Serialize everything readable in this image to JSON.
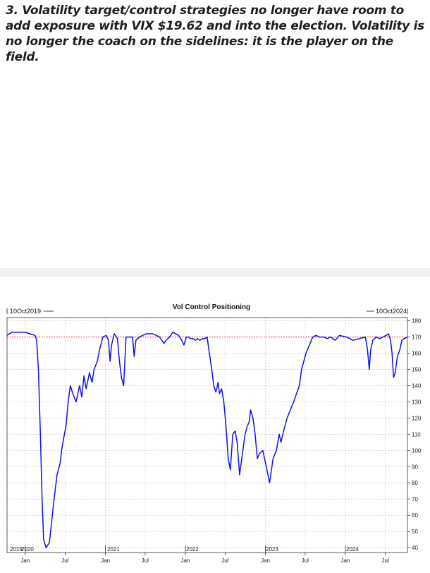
{
  "heading": "3. Volatility target/control strategies no longer have room to add exposure with VIX $19.62 and into the election. Volatility is no longer the coach on the sidelines: it is the player on the field.",
  "colors": {
    "series": "#1010f0",
    "reference": "#e02020",
    "grid": "#c8c8c8"
  },
  "chart_data": {
    "type": "line",
    "title": "Vol Control Positioning",
    "range_start_label": "10Oct2019",
    "range_end_label": "10Oct2024",
    "xlabel": "",
    "ylabel": "",
    "ylim": [
      37,
      182
    ],
    "yticks": [
      40,
      50,
      60,
      70,
      80,
      90,
      100,
      110,
      120,
      130,
      140,
      150,
      160,
      170,
      180
    ],
    "y_axis_side": "right",
    "grid": true,
    "reference_line": {
      "value": 170,
      "style": "dotted"
    },
    "x_month_labels": [
      "Jan",
      "Jul",
      "Jan",
      "Jul",
      "Jan",
      "Jul",
      "Jan",
      "Jul",
      "Jan",
      "Jul"
    ],
    "x_year_labels": [
      "2019",
      "2020",
      "2021",
      "2022",
      "2023",
      "2024"
    ],
    "series": [
      {
        "x": [
          "2019-10-10",
          "2019-11-01",
          "2019-12-01",
          "2020-01-01",
          "2020-01-20",
          "2020-02-15",
          "2020-02-22",
          "2020-03-01",
          "2020-03-10",
          "2020-03-18",
          "2020-03-25",
          "2020-04-05",
          "2020-04-20",
          "2020-05-10",
          "2020-05-25",
          "2020-06-08",
          "2020-06-15",
          "2020-06-25",
          "2020-07-05",
          "2020-07-15",
          "2020-07-25",
          "2020-08-05",
          "2020-08-20",
          "2020-09-05",
          "2020-09-15",
          "2020-09-25",
          "2020-10-05",
          "2020-10-20",
          "2020-11-01",
          "2020-11-10",
          "2020-11-25",
          "2020-12-05",
          "2020-12-20",
          "2021-01-05",
          "2021-01-15",
          "2021-01-22",
          "2021-01-29",
          "2021-02-10",
          "2021-02-25",
          "2021-03-05",
          "2021-03-15",
          "2021-03-25",
          "2021-04-05",
          "2021-05-05",
          "2021-05-12",
          "2021-05-20",
          "2021-06-05",
          "2021-07-05",
          "2021-08-05",
          "2021-09-05",
          "2021-09-15",
          "2021-09-25",
          "2021-10-05",
          "2021-10-20",
          "2021-11-05",
          "2021-12-01",
          "2021-12-15",
          "2021-12-25",
          "2022-01-05",
          "2022-01-15",
          "2022-01-25",
          "2022-02-05",
          "2022-02-15",
          "2022-02-25",
          "2022-03-08",
          "2022-03-20",
          "2022-03-30",
          "2022-04-10",
          "2022-04-20",
          "2022-05-01",
          "2022-05-10",
          "2022-05-20",
          "2022-05-30",
          "2022-06-05",
          "2022-06-15",
          "2022-06-25",
          "2022-07-05",
          "2022-07-15",
          "2022-07-25",
          "2022-08-05",
          "2022-08-16",
          "2022-08-25",
          "2022-09-05",
          "2022-09-15",
          "2022-09-25",
          "2022-09-30",
          "2022-10-10",
          "2022-10-20",
          "2022-10-25",
          "2022-11-05",
          "2022-11-15",
          "2022-11-25",
          "2022-12-05",
          "2022-12-20",
          "2023-01-05",
          "2023-01-20",
          "2023-02-05",
          "2023-02-20",
          "2023-03-05",
          "2023-03-13",
          "2023-03-25",
          "2023-04-10",
          "2023-05-10",
          "2023-06-05",
          "2023-06-15",
          "2023-07-05",
          "2023-08-05",
          "2023-08-20",
          "2023-09-05",
          "2023-09-25",
          "2023-10-10",
          "2023-10-25",
          "2023-11-05",
          "2023-11-15",
          "2023-12-05",
          "2024-01-05",
          "2024-02-05",
          "2024-03-05",
          "2024-04-01",
          "2024-04-10",
          "2024-04-19",
          "2024-04-25",
          "2024-05-05",
          "2024-05-20",
          "2024-06-05",
          "2024-06-20",
          "2024-07-05",
          "2024-07-15",
          "2024-07-25",
          "2024-08-01",
          "2024-08-05",
          "2024-08-08",
          "2024-08-15",
          "2024-08-25",
          "2024-09-05",
          "2024-09-15",
          "2024-09-25",
          "2024-10-10"
        ],
        "y": [
          171,
          173,
          173,
          173,
          172,
          171,
          168,
          150,
          110,
          70,
          45,
          40,
          43,
          68,
          85,
          92,
          100,
          108,
          115,
          130,
          140,
          135,
          130,
          140,
          133,
          146,
          138,
          148,
          142,
          150,
          155,
          162,
          170,
          171,
          168,
          155,
          165,
          172,
          169,
          156,
          145,
          140,
          170,
          170,
          158,
          168,
          170,
          172,
          172,
          170,
          168,
          166,
          168,
          170,
          173,
          171,
          168,
          165,
          170,
          170,
          169,
          169,
          168,
          169,
          168,
          169,
          169,
          170,
          160,
          150,
          140,
          136,
          142,
          135,
          138,
          130,
          115,
          95,
          88,
          110,
          112,
          105,
          85,
          95,
          105,
          110,
          115,
          118,
          125,
          120,
          110,
          95,
          98,
          100,
          90,
          80,
          95,
          100,
          110,
          105,
          112,
          120,
          130,
          140,
          150,
          160,
          170,
          171,
          170,
          170,
          169,
          170,
          169,
          168,
          171,
          170,
          168,
          169,
          170,
          163,
          150,
          162,
          168,
          170,
          169,
          170,
          171,
          172,
          168,
          160,
          150,
          145,
          148,
          158,
          162,
          168,
          169,
          170
        ]
      }
    ]
  }
}
